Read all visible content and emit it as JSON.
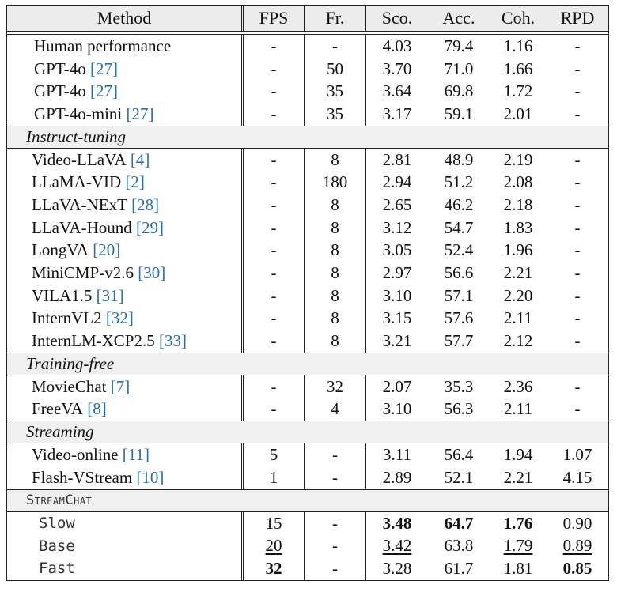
{
  "header": {
    "method": "Method",
    "fps": "FPS",
    "fr": "Fr.",
    "sco": "Sco.",
    "acc": "Acc.",
    "coh": "Coh.",
    "rpd": "RPD"
  },
  "groups": [
    {
      "title": "",
      "rows": [
        {
          "name": "Human performance",
          "cite": "",
          "fps": "-",
          "fr": "-",
          "sco": "4.03",
          "acc": "79.4",
          "coh": "1.16",
          "rpd": "-"
        },
        {
          "name": "GPT-4o",
          "cite": "[27]",
          "fps": "-",
          "fr": "50",
          "sco": "3.70",
          "acc": "71.0",
          "coh": "1.66",
          "rpd": "-"
        },
        {
          "name": "GPT-4o",
          "cite": "[27]",
          "fps": "-",
          "fr": "35",
          "sco": "3.64",
          "acc": "69.8",
          "coh": "1.72",
          "rpd": "-"
        },
        {
          "name": "GPT-4o-mini",
          "cite": "[27]",
          "fps": "-",
          "fr": "35",
          "sco": "3.17",
          "acc": "59.1",
          "coh": "2.01",
          "rpd": "-"
        }
      ]
    },
    {
      "title": "Instruct-tuning",
      "rows": [
        {
          "name": "Video-LLaVA",
          "cite": "[4]",
          "fps": "-",
          "fr": "8",
          "sco": "2.81",
          "acc": "48.9",
          "coh": "2.19",
          "rpd": "-"
        },
        {
          "name": "LLaMA-VID",
          "cite": "[2]",
          "fps": "-",
          "fr": "180",
          "sco": "2.94",
          "acc": "51.2",
          "coh": "2.08",
          "rpd": "-"
        },
        {
          "name": "LLaVA-NExT",
          "cite": "[28]",
          "fps": "-",
          "fr": "8",
          "sco": "2.65",
          "acc": "46.2",
          "coh": "2.18",
          "rpd": "-"
        },
        {
          "name": "LLaVA-Hound",
          "cite": "[29]",
          "fps": "-",
          "fr": "8",
          "sco": "3.12",
          "acc": "54.7",
          "coh": "1.83",
          "rpd": "-"
        },
        {
          "name": "LongVA",
          "cite": "[20]",
          "fps": "-",
          "fr": "8",
          "sco": "3.05",
          "acc": "52.4",
          "coh": "1.96",
          "rpd": "-"
        },
        {
          "name": "MiniCMP-v2.6",
          "cite": "[30]",
          "fps": "-",
          "fr": "8",
          "sco": "2.97",
          "acc": "56.6",
          "coh": "2.21",
          "rpd": "-"
        },
        {
          "name": "VILA1.5",
          "cite": "[31]",
          "fps": "-",
          "fr": "8",
          "sco": "3.10",
          "acc": "57.1",
          "coh": "2.20",
          "rpd": "-"
        },
        {
          "name": "InternVL2",
          "cite": "[32]",
          "fps": "-",
          "fr": "8",
          "sco": "3.15",
          "acc": "57.6",
          "coh": "2.11",
          "rpd": "-"
        },
        {
          "name": "InternLM-XCP2.5",
          "cite": "[33]",
          "fps": "-",
          "fr": "8",
          "sco": "3.21",
          "acc": "57.7",
          "coh": "2.12",
          "rpd": "-"
        }
      ]
    },
    {
      "title": "Training-free",
      "rows": [
        {
          "name": "MovieChat",
          "cite": "[7]",
          "fps": "-",
          "fr": "32",
          "sco": "2.07",
          "acc": "35.3",
          "coh": "2.36",
          "rpd": "-"
        },
        {
          "name": "FreeVA",
          "cite": "[8]",
          "fps": "-",
          "fr": "4",
          "sco": "3.10",
          "acc": "56.3",
          "coh": "2.11",
          "rpd": "-"
        }
      ]
    },
    {
      "title": "Streaming",
      "rows": [
        {
          "name": "Video-online",
          "cite": "[11]",
          "fps": "5",
          "fr": "-",
          "sco": "3.11",
          "acc": "56.4",
          "coh": "1.94",
          "rpd": "1.07"
        },
        {
          "name": "Flash-VStream",
          "cite": "[10]",
          "fps": "1",
          "fr": "-",
          "sco": "2.89",
          "acc": "52.1",
          "coh": "2.21",
          "rpd": "4.15"
        }
      ]
    },
    {
      "title": "StreamChat",
      "smallcaps": true,
      "rows": [
        {
          "name": "Slow",
          "cite": "",
          "mono": true,
          "fps": "15",
          "fr": "-",
          "sco": "3.48",
          "acc": "64.7",
          "coh": "1.76",
          "rpd": "0.90",
          "bold": [
            "sco",
            "acc",
            "coh"
          ],
          "underline": []
        },
        {
          "name": "Base",
          "cite": "",
          "mono": true,
          "fps": "20",
          "fr": "-",
          "sco": "3.42",
          "acc": "63.8",
          "coh": "1.79",
          "rpd": "0.89",
          "bold": [],
          "underline": [
            "fps",
            "sco",
            "coh",
            "rpd"
          ]
        },
        {
          "name": "Fast",
          "cite": "",
          "mono": true,
          "fps": "32",
          "fr": "-",
          "sco": "3.28",
          "acc": "61.7",
          "coh": "1.81",
          "rpd": "0.85",
          "bold": [
            "fps",
            "rpd"
          ],
          "underline": []
        }
      ]
    }
  ]
}
